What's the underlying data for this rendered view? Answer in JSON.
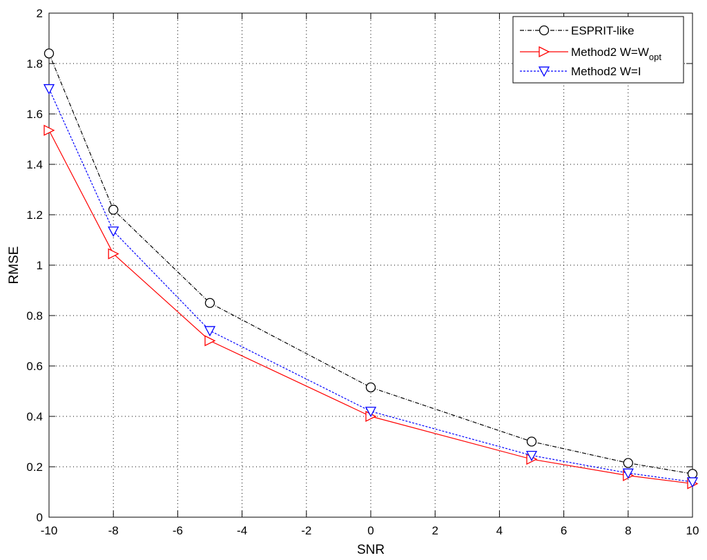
{
  "chart_data": {
    "type": "line",
    "title": "",
    "xlabel": "SNR",
    "ylabel": "RMSE",
    "xlim": [
      -10,
      10
    ],
    "ylim": [
      0,
      2
    ],
    "xticks": [
      -10,
      -8,
      -6,
      -4,
      -2,
      0,
      2,
      4,
      6,
      8,
      10
    ],
    "yticks": [
      0,
      0.2,
      0.4,
      0.6,
      0.8,
      1,
      1.2,
      1.4,
      1.6,
      1.8,
      2
    ],
    "xtick_labels": [
      "-10",
      "-8",
      "-6",
      "-4",
      "-2",
      "0",
      "2",
      "4",
      "6",
      "8",
      "10"
    ],
    "ytick_labels": [
      "0",
      "0.2",
      "0.4",
      "0.6",
      "0.8",
      "1",
      "1.2",
      "1.4",
      "1.6",
      "1.8",
      "2"
    ],
    "grid": true,
    "legend_position": "top-right",
    "x": [
      -10,
      -8,
      -5,
      0,
      5,
      8,
      10
    ],
    "series": [
      {
        "name": "ESPRIT-like",
        "values": [
          1.84,
          1.22,
          0.85,
          0.515,
          0.3,
          0.215,
          0.172
        ],
        "color": "#000000",
        "line": "dashdot",
        "marker": "circle",
        "legend": {
          "main": "ESPRIT-like",
          "sub": ""
        }
      },
      {
        "name": "Method2 W=Wopt",
        "values": [
          1.535,
          1.045,
          0.7,
          0.4,
          0.23,
          0.165,
          0.133
        ],
        "color": "#ff0000",
        "line": "solid",
        "marker": "triangle-right",
        "legend": {
          "main": "Method2 W=W",
          "sub": "opt"
        }
      },
      {
        "name": "Method2 W=I",
        "values": [
          1.7,
          1.135,
          0.74,
          0.42,
          0.245,
          0.175,
          0.14
        ],
        "color": "#0000ff",
        "line": "dashed",
        "marker": "triangle-down",
        "legend": {
          "main": "Method2 W=I",
          "sub": ""
        }
      }
    ]
  }
}
